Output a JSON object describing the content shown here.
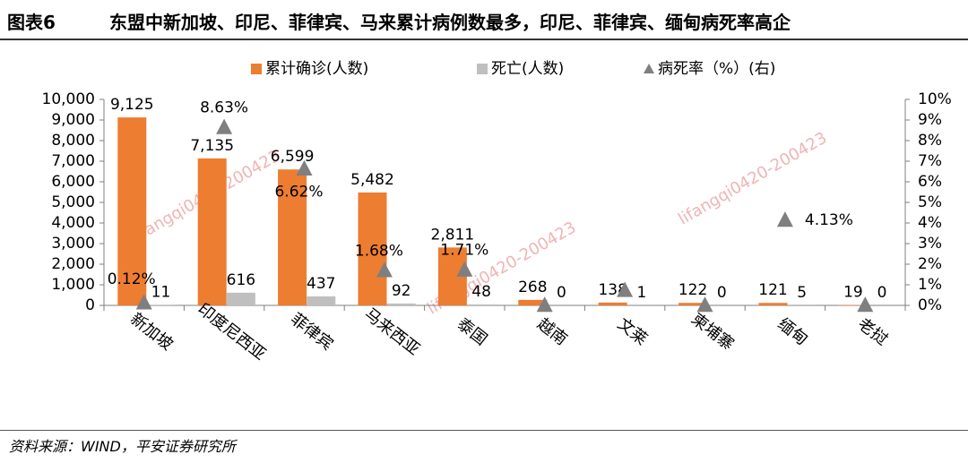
{
  "figure": {
    "label": "图表6",
    "title": "东盟中新加坡、印尼、菲律宾、马来累计病例数最多，印尼、菲律宾、缅甸病死率高企",
    "source": "资料来源：WIND，平安证券研究所"
  },
  "watermark": "lifangqi0420-200423",
  "chart_data": {
    "type": "bar",
    "categories": [
      "新加坡",
      "印度尼西亚",
      "菲律宾",
      "马来西亚",
      "泰国",
      "越南",
      "文莱",
      "柬埔寨",
      "缅甸",
      "老挝"
    ],
    "series": [
      {
        "name": "累计确诊(人数)",
        "axis": "left",
        "kind": "bar",
        "color": "#ED7D31",
        "values": [
          9125,
          7135,
          6599,
          5482,
          2811,
          268,
          138,
          122,
          121,
          19
        ],
        "labels": [
          "9,125",
          "7,135",
          "6,599",
          "5,482",
          "2,811",
          "268",
          "138",
          "122",
          "121",
          "19"
        ]
      },
      {
        "name": "死亡(人数)",
        "axis": "left",
        "kind": "bar",
        "color": "#BFBFBF",
        "values": [
          11,
          616,
          437,
          92,
          48,
          0,
          1,
          0,
          5,
          0
        ],
        "labels": [
          "11",
          "616",
          "437",
          "92",
          "48",
          "0",
          "1",
          "0",
          "5",
          "0"
        ]
      },
      {
        "name": "病死率（%）(右)",
        "axis": "right",
        "kind": "marker",
        "marker": "triangle",
        "color": "#7F7F7F",
        "values": [
          0.12,
          8.63,
          6.62,
          1.68,
          1.71,
          0,
          0.72,
          0,
          4.13,
          0
        ],
        "labels": [
          "0.12%",
          "8.63%",
          "6.62%",
          "1.68%",
          "1.71%",
          "",
          "",
          "",
          "4.13%",
          ""
        ]
      }
    ],
    "y_left": {
      "min": 0,
      "max": 10000,
      "ticks": [
        0,
        1000,
        2000,
        3000,
        4000,
        5000,
        6000,
        7000,
        8000,
        9000,
        10000
      ],
      "tick_labels": [
        "0",
        "1,000",
        "2,000",
        "3,000",
        "4,000",
        "5,000",
        "6,000",
        "7,000",
        "8,000",
        "9,000",
        "10,000"
      ]
    },
    "y_right": {
      "min": 0,
      "max": 10,
      "ticks": [
        0,
        1,
        2,
        3,
        4,
        5,
        6,
        7,
        8,
        9,
        10
      ],
      "tick_labels": [
        "0%",
        "1%",
        "2%",
        "3%",
        "4%",
        "5%",
        "6%",
        "7%",
        "8%",
        "9%",
        "10%"
      ]
    },
    "grid": false,
    "legend": "top-center"
  }
}
